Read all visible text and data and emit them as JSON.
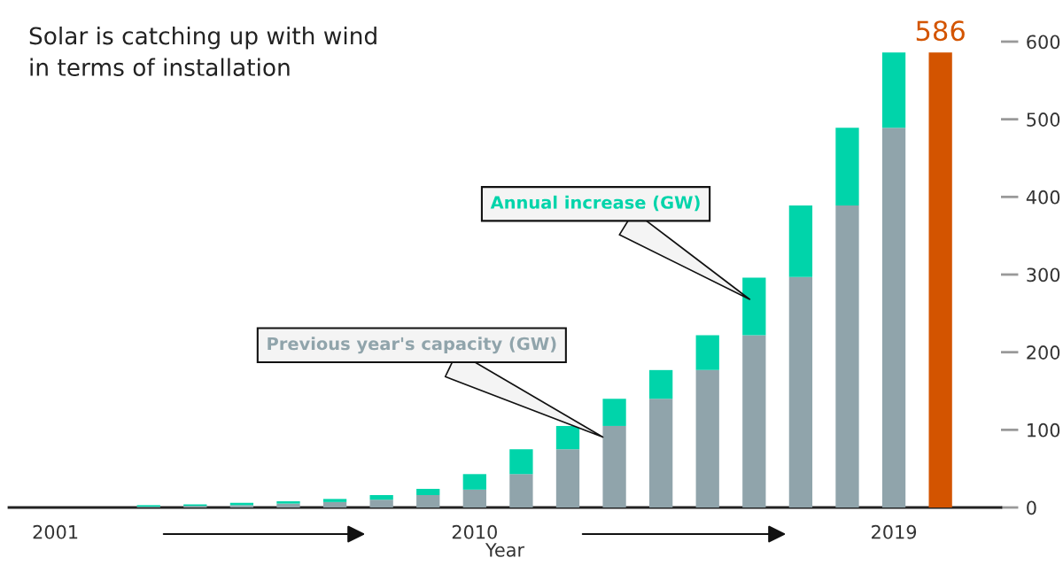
{
  "chart_data": {
    "type": "bar",
    "stacked": true,
    "title": "Solar is catching up with wind\nin terms of installation",
    "xlabel": "Year",
    "categories": [
      "2001",
      null,
      null,
      null,
      null,
      null,
      null,
      null,
      null,
      "2010",
      null,
      null,
      null,
      null,
      null,
      null,
      null,
      null,
      "2019",
      null
    ],
    "series": [
      {
        "name": "Previous year's capacity (GW)",
        "color": "#90a4ab",
        "values": [
          null,
          null,
          1,
          2,
          3,
          5,
          7,
          10,
          16,
          23,
          43,
          75,
          105,
          140,
          177,
          222,
          297,
          389,
          489,
          null
        ]
      },
      {
        "name": "Annual increase (GW)",
        "color": "#00d4aa",
        "values": [
          null,
          null,
          2,
          2,
          3,
          3,
          4,
          6,
          8,
          20,
          32,
          30,
          35,
          37,
          45,
          74,
          92,
          100,
          97,
          null
        ]
      },
      {
        "color": "#d35400",
        "values": [
          null,
          null,
          null,
          null,
          null,
          null,
          null,
          null,
          null,
          null,
          null,
          null,
          null,
          null,
          null,
          null,
          null,
          null,
          null,
          586
        ],
        "value_labels": [
          null,
          null,
          null,
          null,
          null,
          null,
          null,
          null,
          null,
          null,
          null,
          null,
          null,
          null,
          null,
          null,
          null,
          null,
          null,
          "586"
        ]
      }
    ],
    "ylim": [
      0,
      600
    ],
    "yticks": [
      0,
      100,
      200,
      300,
      400,
      500,
      600
    ],
    "grid": false,
    "legend": false
  }
}
